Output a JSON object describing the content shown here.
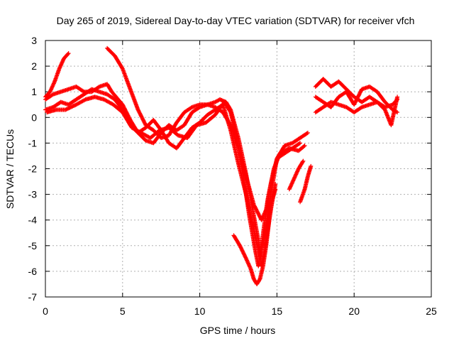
{
  "chart_data": {
    "type": "scatter",
    "title": "Day 265 of 2019, Sidereal Day-to-day VTEC variation (SDTVAR) for receiver vfch",
    "xlabel": "GPS time / hours",
    "ylabel": "SDTVAR / TECUs",
    "xlim": [
      0,
      25
    ],
    "ylim": [
      -7,
      3
    ],
    "xticks": [
      0,
      5,
      10,
      15,
      20,
      25
    ],
    "yticks": [
      3,
      2,
      1,
      0,
      -1,
      -2,
      -3,
      -4,
      -5,
      -6,
      -7
    ],
    "grid": true,
    "marker": "+",
    "color": "#ff0000",
    "series": [
      {
        "points": [
          [
            0.0,
            0.8
          ],
          [
            0.3,
            1.0
          ],
          [
            0.6,
            1.4
          ],
          [
            0.9,
            1.9
          ],
          [
            1.2,
            2.3
          ],
          [
            1.5,
            2.5
          ]
        ]
      },
      {
        "points": [
          [
            0.0,
            0.7
          ],
          [
            0.5,
            0.9
          ],
          [
            1.0,
            1.0
          ],
          [
            1.5,
            1.1
          ],
          [
            2.0,
            1.2
          ],
          [
            2.5,
            1.0
          ],
          [
            3.0,
            1.0
          ],
          [
            3.5,
            1.2
          ],
          [
            4.0,
            1.3
          ],
          [
            4.3,
            1.0
          ],
          [
            5.0,
            0.5
          ],
          [
            5.5,
            -0.1
          ],
          [
            6.0,
            -0.6
          ],
          [
            6.5,
            -0.9
          ],
          [
            7.0,
            -1.0
          ],
          [
            7.5,
            -0.6
          ],
          [
            8.0,
            -0.3
          ],
          [
            8.5,
            -0.5
          ],
          [
            9.0,
            -0.3
          ],
          [
            9.5,
            0.2
          ],
          [
            10.0,
            0.4
          ],
          [
            10.5,
            0.5
          ],
          [
            11.0,
            0.4
          ],
          [
            11.5,
            0.2
          ],
          [
            12.0,
            -0.3
          ],
          [
            12.5,
            -1.2
          ],
          [
            13.0,
            -2.3
          ],
          [
            13.5,
            -3.4
          ],
          [
            14.0,
            -4.0
          ],
          [
            14.3,
            -3.6
          ],
          [
            14.6,
            -2.6
          ],
          [
            15.0,
            -1.6
          ],
          [
            15.5,
            -1.4
          ],
          [
            16.0,
            -1.2
          ],
          [
            16.5,
            -1.0
          ]
        ]
      },
      {
        "points": [
          [
            0.0,
            0.3
          ],
          [
            0.5,
            0.4
          ],
          [
            1.0,
            0.6
          ],
          [
            1.5,
            0.5
          ],
          [
            2.0,
            0.7
          ],
          [
            2.5,
            0.9
          ],
          [
            3.0,
            1.1
          ],
          [
            3.5,
            1.0
          ],
          [
            4.0,
            0.9
          ],
          [
            4.5,
            0.7
          ],
          [
            5.0,
            0.3
          ],
          [
            5.5,
            -0.3
          ],
          [
            6.0,
            -0.6
          ],
          [
            6.5,
            -0.4
          ],
          [
            7.0,
            -0.1
          ],
          [
            7.5,
            -0.5
          ],
          [
            8.0,
            -1.0
          ],
          [
            8.5,
            -1.2
          ],
          [
            9.0,
            -0.8
          ],
          [
            9.5,
            -0.4
          ],
          [
            10.0,
            -0.2
          ],
          [
            10.5,
            0.1
          ],
          [
            11.0,
            0.3
          ],
          [
            11.5,
            0.5
          ],
          [
            12.0,
            -0.5
          ],
          [
            12.5,
            -1.8
          ],
          [
            13.0,
            -3.0
          ],
          [
            13.5,
            -4.4
          ],
          [
            13.9,
            -5.4
          ],
          [
            14.2,
            -4.6
          ],
          [
            14.6,
            -3.0
          ],
          [
            15.0,
            -1.6
          ],
          [
            15.5,
            -1.1
          ],
          [
            16.0,
            -1.0
          ],
          [
            16.5,
            -0.8
          ],
          [
            17.0,
            -0.6
          ]
        ]
      },
      {
        "points": [
          [
            0.1,
            0.2
          ],
          [
            0.7,
            0.3
          ],
          [
            1.3,
            0.3
          ],
          [
            2.0,
            0.5
          ],
          [
            2.6,
            0.7
          ],
          [
            3.2,
            0.8
          ],
          [
            3.8,
            0.7
          ],
          [
            4.4,
            0.5
          ],
          [
            5.0,
            0.2
          ],
          [
            5.6,
            -0.4
          ],
          [
            6.2,
            -0.6
          ],
          [
            6.8,
            -0.8
          ],
          [
            7.4,
            -0.5
          ],
          [
            8.0,
            -0.4
          ],
          [
            8.6,
            -0.7
          ],
          [
            9.2,
            -0.8
          ],
          [
            9.8,
            -0.3
          ],
          [
            10.4,
            -0.2
          ],
          [
            11.0,
            0.1
          ],
          [
            11.6,
            0.6
          ],
          [
            12.0,
            0.2
          ],
          [
            12.4,
            -0.8
          ],
          [
            12.8,
            -2.2
          ],
          [
            13.2,
            -3.8
          ],
          [
            13.6,
            -5.2
          ],
          [
            13.8,
            -5.8
          ],
          [
            14.0,
            -5.0
          ],
          [
            14.4,
            -3.2
          ],
          [
            14.8,
            -2.0
          ],
          [
            15.2,
            -1.4
          ],
          [
            15.8,
            -1.2
          ],
          [
            16.4,
            -1.3
          ],
          [
            16.8,
            -1.1
          ]
        ]
      },
      {
        "points": [
          [
            4.0,
            2.7
          ],
          [
            4.5,
            2.4
          ],
          [
            5.0,
            1.9
          ],
          [
            5.5,
            1.1
          ],
          [
            6.0,
            0.3
          ],
          [
            6.5,
            -0.3
          ],
          [
            7.0,
            -0.5
          ],
          [
            7.5,
            -0.8
          ],
          [
            8.0,
            -0.7
          ],
          [
            8.5,
            -0.2
          ],
          [
            9.0,
            0.2
          ],
          [
            9.5,
            0.4
          ],
          [
            10.0,
            0.5
          ],
          [
            10.5,
            0.5
          ],
          [
            11.0,
            0.6
          ],
          [
            11.3,
            0.7
          ],
          [
            11.7,
            0.6
          ],
          [
            12.0,
            0.3
          ],
          [
            12.5,
            -0.8
          ],
          [
            13.0,
            -2.2
          ],
          [
            13.4,
            -3.5
          ],
          [
            13.8,
            -4.8
          ],
          [
            14.0,
            -5.8
          ],
          [
            14.2,
            -5.2
          ],
          [
            14.6,
            -3.6
          ],
          [
            14.9,
            -2.6
          ]
        ]
      },
      {
        "points": [
          [
            12.2,
            -4.6
          ],
          [
            12.6,
            -5.0
          ],
          [
            13.0,
            -5.5
          ],
          [
            13.3,
            -5.9
          ],
          [
            13.5,
            -6.3
          ],
          [
            13.7,
            -6.5
          ],
          [
            13.9,
            -6.3
          ],
          [
            14.1,
            -5.8
          ],
          [
            14.3,
            -5.0
          ],
          [
            14.5,
            -4.0
          ],
          [
            14.7,
            -3.2
          ],
          [
            14.9,
            -2.8
          ]
        ]
      },
      {
        "points": [
          [
            15.8,
            -2.8
          ],
          [
            16.1,
            -2.4
          ],
          [
            16.4,
            -2.0
          ],
          [
            16.7,
            -1.7
          ]
        ]
      },
      {
        "points": [
          [
            16.5,
            -3.3
          ],
          [
            16.8,
            -2.8
          ],
          [
            17.0,
            -2.3
          ],
          [
            17.2,
            -1.9
          ]
        ]
      },
      {
        "points": [
          [
            17.5,
            1.2
          ],
          [
            18.0,
            1.5
          ],
          [
            18.5,
            1.2
          ],
          [
            19.0,
            1.4
          ],
          [
            19.5,
            1.1
          ],
          [
            20.0,
            0.8
          ],
          [
            20.5,
            0.6
          ],
          [
            21.0,
            0.8
          ],
          [
            21.5,
            0.6
          ],
          [
            22.0,
            0.4
          ],
          [
            22.5,
            0.5
          ],
          [
            22.8,
            0.7
          ]
        ]
      },
      {
        "points": [
          [
            17.5,
            0.8
          ],
          [
            18.0,
            0.6
          ],
          [
            18.5,
            0.4
          ],
          [
            19.0,
            0.8
          ],
          [
            19.5,
            1.0
          ],
          [
            20.0,
            0.5
          ],
          [
            20.5,
            1.1
          ],
          [
            21.0,
            1.2
          ],
          [
            21.5,
            1.0
          ],
          [
            22.0,
            0.6
          ],
          [
            22.5,
            0.3
          ],
          [
            22.8,
            0.2
          ]
        ]
      },
      {
        "points": [
          [
            17.5,
            0.2
          ],
          [
            18.0,
            0.4
          ],
          [
            18.5,
            0.6
          ],
          [
            19.0,
            0.5
          ],
          [
            19.5,
            0.4
          ],
          [
            20.0,
            0.2
          ],
          [
            20.5,
            0.4
          ],
          [
            21.0,
            0.5
          ],
          [
            21.5,
            0.6
          ],
          [
            22.0,
            0.3
          ],
          [
            22.4,
            -0.3
          ],
          [
            22.8,
            0.8
          ]
        ]
      }
    ]
  }
}
